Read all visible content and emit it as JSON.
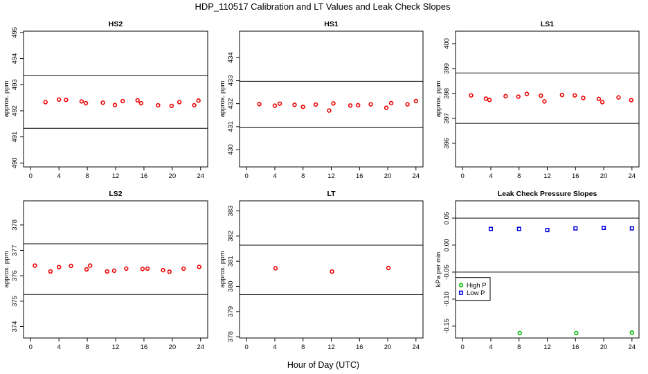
{
  "figure": {
    "title": "HDP_110517  Calibration and LT Values and Leak Check Slopes",
    "xlabel": "Hour of Day (UTC)"
  },
  "chart_data": [
    {
      "id": "hs2",
      "type": "scatter",
      "title": "HS2",
      "ylabel": "approx. ppm",
      "xlim": [
        -1,
        25
      ],
      "ylim": [
        489.85,
        495.05
      ],
      "xticks": [
        0,
        4,
        8,
        12,
        16,
        20,
        24
      ],
      "yticks": [
        490,
        491,
        492,
        493,
        494,
        495
      ],
      "hlines": [
        493.35,
        491.33
      ],
      "series": [
        {
          "name": "HS2",
          "color": "#ee0000",
          "marker": "circle",
          "x": [
            2.1,
            4.0,
            5.0,
            7.2,
            7.8,
            10.2,
            11.9,
            13.0,
            15.1,
            15.6,
            18.0,
            19.9,
            21.0,
            23.1,
            23.7
          ],
          "y": [
            492.33,
            492.43,
            492.42,
            492.36,
            492.29,
            492.31,
            492.22,
            492.37,
            492.4,
            492.29,
            492.21,
            492.19,
            492.33,
            492.21,
            492.39
          ]
        }
      ]
    },
    {
      "id": "hs1",
      "type": "scatter",
      "title": "HS1",
      "ylabel": "approx. ppm",
      "xlim": [
        -1,
        25
      ],
      "ylim": [
        429.25,
        435.15
      ],
      "xticks": [
        0,
        4,
        8,
        12,
        16,
        20,
        24
      ],
      "yticks": [
        430,
        431,
        432,
        433,
        434
      ],
      "hlines": [
        432.97,
        430.96
      ],
      "series": [
        {
          "name": "HS1",
          "color": "#ee0000",
          "marker": "circle",
          "x": [
            1.8,
            4.0,
            4.7,
            6.8,
            8.0,
            9.8,
            11.7,
            12.3,
            14.7,
            15.8,
            17.6,
            19.8,
            20.5,
            22.8,
            24.0
          ],
          "y": [
            431.98,
            431.91,
            432.0,
            431.95,
            431.86,
            431.96,
            431.7,
            432.01,
            431.92,
            431.93,
            431.97,
            431.82,
            432.02,
            431.97,
            432.11
          ]
        }
      ]
    },
    {
      "id": "ls1",
      "type": "scatter",
      "title": "LS1",
      "ylabel": "approx. ppm",
      "xlim": [
        -1,
        25
      ],
      "ylim": [
        395.05,
        400.5
      ],
      "xticks": [
        0,
        4,
        8,
        12,
        16,
        20,
        24
      ],
      "yticks": [
        396,
        397,
        398,
        399,
        400
      ],
      "hlines": [
        398.82,
        396.8
      ],
      "series": [
        {
          "name": "LS1",
          "color": "#ee0000",
          "marker": "circle",
          "x": [
            1.2,
            3.3,
            3.8,
            6.1,
            7.9,
            9.1,
            11.1,
            11.6,
            14.1,
            15.9,
            17.1,
            19.3,
            19.8,
            22.1,
            23.9
          ],
          "y": [
            397.92,
            397.79,
            397.74,
            397.89,
            397.87,
            397.98,
            397.91,
            397.68,
            397.94,
            397.92,
            397.82,
            397.78,
            397.65,
            397.84,
            397.73
          ]
        }
      ]
    },
    {
      "id": "ls2",
      "type": "scatter",
      "title": "LS2",
      "ylabel": "approx. ppm",
      "xlim": [
        -1,
        25
      ],
      "ylim": [
        373.55,
        378.95
      ],
      "xticks": [
        0,
        4,
        8,
        12,
        16,
        20,
        24
      ],
      "yticks": [
        374,
        375,
        376,
        377,
        378
      ],
      "hlines": [
        377.26,
        375.26
      ],
      "series": [
        {
          "name": "LS2",
          "color": "#ee0000",
          "marker": "circle",
          "x": [
            0.6,
            2.8,
            4.0,
            5.7,
            7.9,
            8.4,
            10.8,
            11.8,
            13.5,
            15.8,
            16.5,
            18.7,
            19.6,
            21.6,
            23.8
          ],
          "y": [
            376.4,
            376.17,
            376.34,
            376.39,
            376.25,
            376.4,
            376.17,
            376.2,
            376.28,
            376.27,
            376.28,
            376.22,
            376.16,
            376.28,
            376.35
          ]
        }
      ]
    },
    {
      "id": "lt",
      "type": "scatter",
      "title": "LT",
      "ylabel": "approx. ppm",
      "xlim": [
        -1,
        25
      ],
      "ylim": [
        377.95,
        383.4
      ],
      "xticks": [
        0,
        4,
        8,
        12,
        16,
        20,
        24
      ],
      "yticks": [
        378,
        379,
        380,
        381,
        382,
        383
      ],
      "hlines": [
        381.64,
        379.67
      ],
      "series": [
        {
          "name": "LT",
          "color": "#ee0000",
          "marker": "circle",
          "x": [
            4.1,
            12.1,
            20.1
          ],
          "y": [
            380.72,
            380.59,
            380.73
          ]
        }
      ]
    },
    {
      "id": "leak",
      "type": "scatter",
      "title": "Leak Check Pressure Slopes",
      "ylabel": "kPa per min",
      "xlim": [
        -1,
        25
      ],
      "ylim": [
        -0.172,
        0.082
      ],
      "xticks": [
        0,
        4,
        8,
        12,
        16,
        20,
        24
      ],
      "yticks": [
        -0.15,
        -0.1,
        -0.05,
        0.0,
        0.05
      ],
      "yticklabels": [
        "-0.15",
        "-0.10",
        "-0.05",
        "0.00",
        "0.05"
      ],
      "hlines": [
        0.05,
        -0.05
      ],
      "legend": {
        "placement": "middle-left",
        "entries": [
          "High P",
          "Low P"
        ]
      },
      "series": [
        {
          "name": "High P",
          "color": "#00bb00",
          "marker": "circle",
          "x": [
            8.1,
            16.1,
            24.0
          ],
          "y": [
            -0.163,
            -0.163,
            -0.162
          ]
        },
        {
          "name": "Low P",
          "color": "#0000dd",
          "marker": "square",
          "x": [
            4.0,
            8.0,
            12.0,
            16.0,
            20.0,
            24.0
          ],
          "y": [
            0.03,
            0.03,
            0.028,
            0.031,
            0.032,
            0.031
          ]
        }
      ]
    }
  ]
}
